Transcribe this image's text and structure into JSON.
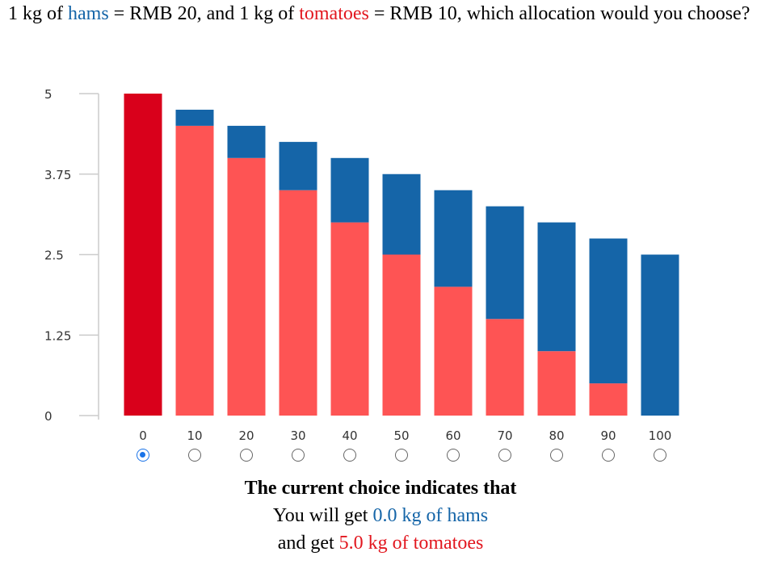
{
  "question": {
    "prefix": "1 kg of ",
    "ham_word": "hams",
    "mid1": " = RMB 20, and 1 kg of ",
    "tomato_word": "tomatoes",
    "suffix": " = RMB 10, which allocation would you choose?"
  },
  "colors": {
    "ham": "#1565a8",
    "tomato": "#fe5454",
    "tomato_selected": "#d9001b",
    "axis": "#cccccc"
  },
  "chart_data": {
    "type": "bar",
    "stacked": true,
    "categories": [
      "0",
      "10",
      "20",
      "30",
      "40",
      "50",
      "60",
      "70",
      "80",
      "90",
      "100"
    ],
    "series": [
      {
        "name": "tomatoes",
        "values": [
          5.0,
          4.5,
          4.0,
          3.5,
          3.0,
          2.5,
          2.0,
          1.5,
          1.0,
          0.5,
          0.0
        ]
      },
      {
        "name": "hams",
        "values": [
          0.0,
          0.25,
          0.5,
          0.75,
          1.0,
          1.25,
          1.5,
          1.75,
          2.0,
          2.25,
          2.5
        ]
      }
    ],
    "yticks": [
      "0",
      "1.25",
      "2.5",
      "3.75",
      "5"
    ],
    "ylim": [
      0,
      5
    ],
    "selected_index": 0
  },
  "result": {
    "heading": "The current choice indicates that",
    "line1_prefix": "You will get ",
    "line1_value": "0.0 kg of hams",
    "line2_prefix": "and get ",
    "line2_value": "5.0 kg of tomatoes"
  }
}
